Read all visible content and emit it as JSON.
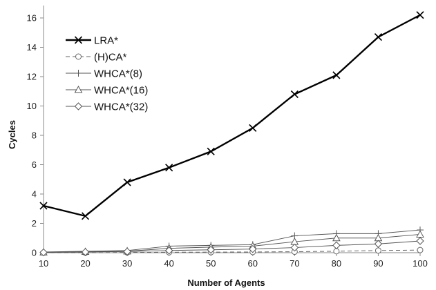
{
  "chart_data": {
    "type": "line",
    "title": "",
    "xlabel": "Number of Agents",
    "ylabel": "Cycles",
    "x": [
      10,
      20,
      30,
      40,
      50,
      60,
      70,
      80,
      90,
      100
    ],
    "xlim": [
      10,
      100
    ],
    "ylim": [
      0,
      17
    ],
    "yticks": [
      0,
      2,
      4,
      6,
      8,
      10,
      12,
      14,
      16
    ],
    "xticks": [
      10,
      20,
      30,
      40,
      50,
      60,
      70,
      80,
      90,
      100
    ],
    "grid": false,
    "legend_position": "top-left",
    "series": [
      {
        "name": "LRA*",
        "marker": "x",
        "dash": false,
        "color": "#000000",
        "width": 2.4,
        "values": [
          3.2,
          2.5,
          4.8,
          5.8,
          6.9,
          8.5,
          10.8,
          12.1,
          14.7,
          16.2
        ]
      },
      {
        "name": "(H)CA*",
        "marker": "circle",
        "dash": true,
        "color": "#666666",
        "width": 1,
        "values": [
          0.0,
          0.0,
          0.02,
          0.03,
          0.04,
          0.05,
          0.07,
          0.1,
          0.15,
          0.18
        ]
      },
      {
        "name": "WHCA*(8)",
        "marker": "plus",
        "dash": false,
        "color": "#555555",
        "width": 1,
        "values": [
          0.05,
          0.1,
          0.15,
          0.45,
          0.5,
          0.55,
          1.15,
          1.3,
          1.3,
          1.55
        ]
      },
      {
        "name": "WHCA*(16)",
        "marker": "triangle",
        "dash": false,
        "color": "#555555",
        "width": 1,
        "values": [
          0.03,
          0.07,
          0.1,
          0.3,
          0.38,
          0.45,
          0.75,
          1.0,
          1.0,
          1.25
        ]
      },
      {
        "name": "WHCA*(32)",
        "marker": "diamond",
        "dash": false,
        "color": "#555555",
        "width": 1,
        "values": [
          0.02,
          0.05,
          0.08,
          0.15,
          0.2,
          0.25,
          0.35,
          0.5,
          0.6,
          0.8
        ]
      }
    ]
  }
}
